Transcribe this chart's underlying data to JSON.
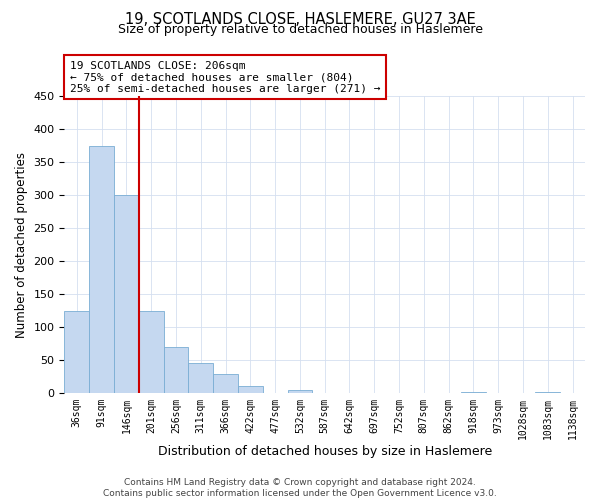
{
  "title": "19, SCOTLANDS CLOSE, HASLEMERE, GU27 3AE",
  "subtitle": "Size of property relative to detached houses in Haslemere",
  "xlabel": "Distribution of detached houses by size in Haslemere",
  "ylabel": "Number of detached properties",
  "bar_labels": [
    "36sqm",
    "91sqm",
    "146sqm",
    "201sqm",
    "256sqm",
    "311sqm",
    "366sqm",
    "422sqm",
    "477sqm",
    "532sqm",
    "587sqm",
    "642sqm",
    "697sqm",
    "752sqm",
    "807sqm",
    "862sqm",
    "918sqm",
    "973sqm",
    "1028sqm",
    "1083sqm",
    "1138sqm"
  ],
  "bar_values": [
    125,
    375,
    300,
    125,
    70,
    45,
    28,
    10,
    0,
    5,
    0,
    0,
    0,
    0,
    0,
    0,
    2,
    0,
    0,
    2,
    0
  ],
  "bar_color": "#c5d8f0",
  "bar_edge_color": "#7aadd4",
  "vline_color": "#cc0000",
  "annotation_title": "19 SCOTLANDS CLOSE: 206sqm",
  "annotation_line1": "← 75% of detached houses are smaller (804)",
  "annotation_line2": "25% of semi-detached houses are larger (271) →",
  "annotation_box_color": "#cc0000",
  "ylim": [
    0,
    450
  ],
  "yticks": [
    0,
    50,
    100,
    150,
    200,
    250,
    300,
    350,
    400,
    450
  ],
  "footer1": "Contains HM Land Registry data © Crown copyright and database right 2024.",
  "footer2": "Contains public sector information licensed under the Open Government Licence v3.0.",
  "bg_color": "#ffffff",
  "grid_color": "#d4dff0"
}
